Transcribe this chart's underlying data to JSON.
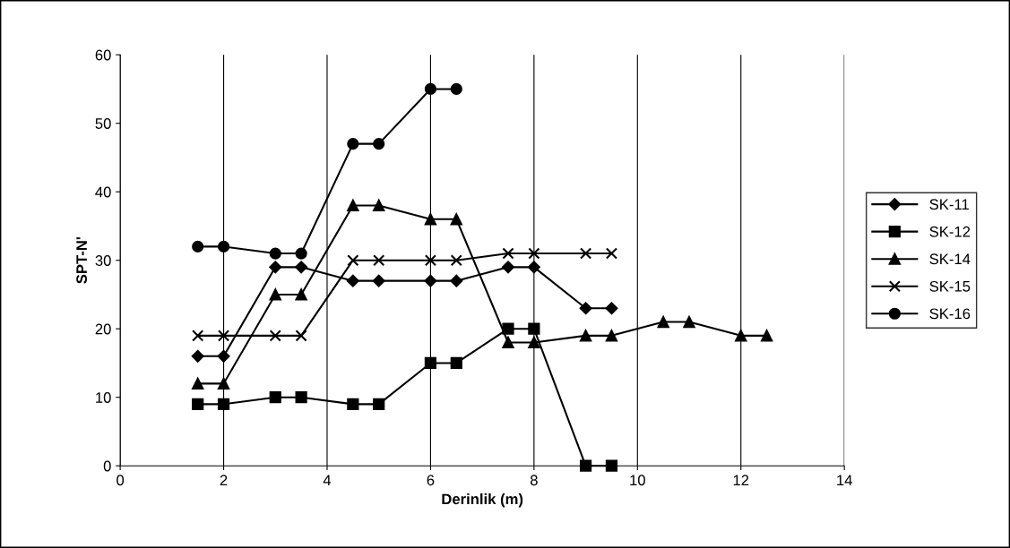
{
  "chart_data": {
    "type": "line",
    "xlabel": "Derinlik (m)",
    "ylabel": "SPT-N'",
    "xlim": [
      0,
      14
    ],
    "xticks": [
      0,
      2,
      4,
      6,
      8,
      10,
      12,
      14
    ],
    "ylim": [
      0,
      60
    ],
    "yticks": [
      0,
      10,
      20,
      30,
      40,
      50,
      60
    ],
    "grid": "x",
    "legend": "right",
    "line_style": "solid",
    "series": [
      {
        "name": "SK-11",
        "color": "#000000",
        "marker": "diamond",
        "x": [
          1.5,
          2,
          3,
          3.5,
          4.5,
          5,
          6,
          6.5,
          7.5,
          8,
          9,
          9.5
        ],
        "values": [
          16,
          16,
          29,
          29,
          27,
          27,
          27,
          27,
          29,
          29,
          23,
          23
        ]
      },
      {
        "name": "SK-12",
        "color": "#000000",
        "marker": "square",
        "x": [
          1.5,
          2,
          3,
          3.5,
          4.5,
          5,
          6,
          6.5,
          7.5,
          8,
          9,
          9.5
        ],
        "values": [
          9,
          9,
          10,
          10,
          9,
          9,
          15,
          15,
          20,
          20,
          0,
          0
        ]
      },
      {
        "name": "SK-14",
        "color": "#000000",
        "marker": "triangle",
        "x": [
          1.5,
          2,
          3,
          3.5,
          4.5,
          5,
          6,
          6.5,
          7.5,
          8,
          9,
          9.5,
          10.5,
          11,
          12,
          12.5
        ],
        "values": [
          12,
          12,
          25,
          25,
          38,
          38,
          36,
          36,
          18,
          18,
          19,
          19,
          21,
          21,
          19,
          19
        ]
      },
      {
        "name": "SK-15",
        "color": "#000000",
        "marker": "cross",
        "x": [
          1.5,
          2,
          3,
          3.5,
          4.5,
          5,
          6,
          6.5,
          7.5,
          8,
          9,
          9.5
        ],
        "values": [
          19,
          19,
          19,
          19,
          30,
          30,
          30,
          30,
          31,
          31,
          31,
          31
        ]
      },
      {
        "name": "SK-16",
        "color": "#000000",
        "marker": "circle",
        "x": [
          1.5,
          2,
          3,
          3.5,
          4.5,
          5,
          6,
          6.5
        ],
        "values": [
          32,
          32,
          31,
          31,
          47,
          47,
          55,
          55
        ]
      }
    ]
  }
}
